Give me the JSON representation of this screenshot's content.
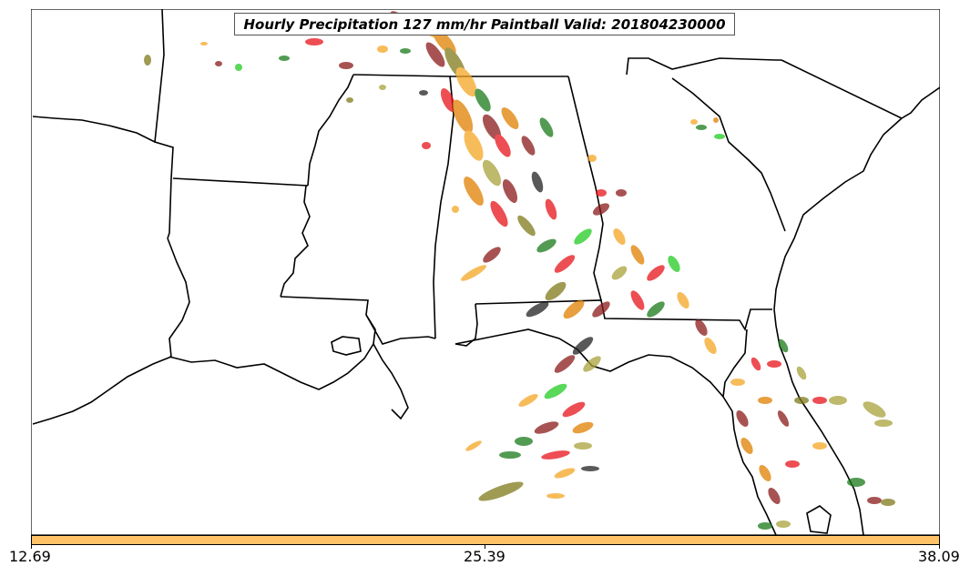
{
  "title": "Hourly Precipitation 127 mm/hr Paintball Valid: 201804230000",
  "colorbar": {
    "color": "#ffc266",
    "ticks": [
      "12.69",
      "25.39",
      "38.09"
    ]
  },
  "colors": {
    "green": "#22cc22",
    "darkgreen": "#1a7a1a",
    "red": "#e8131a",
    "darkred": "#8b1a1a",
    "orange": "#f5a623",
    "darkorange": "#e08000",
    "olive": "#7f7a1a",
    "khaki": "#a9a23a",
    "black": "#222222"
  }
}
